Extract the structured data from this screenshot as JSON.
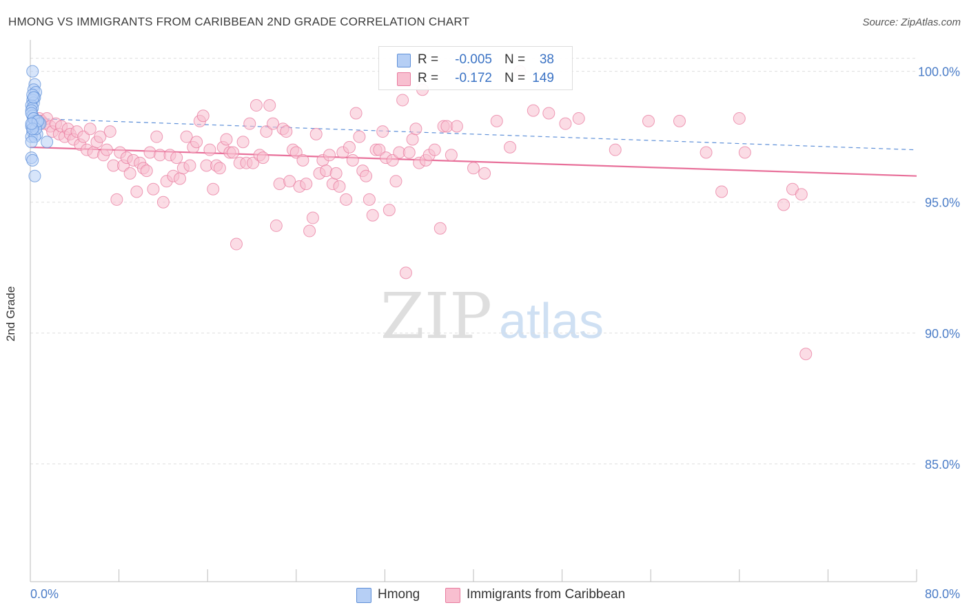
{
  "header": {
    "title": "HMONG VS IMMIGRANTS FROM CARIBBEAN 2ND GRADE CORRELATION CHART",
    "source": "Source: ZipAtlas.com"
  },
  "watermark": {
    "zip": "ZIP",
    "atlas": "atlas"
  },
  "legend": {
    "rows": [
      {
        "r_label": "R =",
        "r_value": "-0.005",
        "n_label": "N =",
        "n_value": "38"
      },
      {
        "r_label": "R =",
        "r_value": "-0.172",
        "n_label": "N =",
        "n_value": "149"
      }
    ]
  },
  "colors": {
    "hmong_fill": "#b6cff5",
    "hmong_stroke": "#5d8fd8",
    "hmong_line": "#5d8fd8",
    "carib_fill": "#f8bfd0",
    "carib_stroke": "#e87a9e",
    "carib_line": "#e8709a",
    "axis_text": "#4a7cc7",
    "grid": "#dddddd"
  },
  "chart_data": {
    "type": "scatter",
    "title": "HMONG VS IMMIGRANTS FROM CARIBBEAN 2ND GRADE CORRELATION CHART",
    "xlabel": "",
    "ylabel": "2nd Grade",
    "xlim": [
      0,
      80
    ],
    "ylim": [
      80.5,
      101.2
    ],
    "x_tick_labels": [
      "0.0%",
      "80.0%"
    ],
    "y_ticks": [
      85,
      90,
      95,
      100
    ],
    "y_tick_labels": [
      "85.0%",
      "90.0%",
      "95.0%",
      "100.0%"
    ],
    "grid": true,
    "legend_position": "bottom",
    "series": [
      {
        "name": "Hmong",
        "trend": {
          "x": [
            0,
            80
          ],
          "y": [
            98.2,
            97.0
          ]
        },
        "points": [
          [
            0.2,
            100.0
          ],
          [
            0.4,
            99.5
          ],
          [
            0.3,
            99.3
          ],
          [
            0.5,
            99.2
          ],
          [
            0.4,
            99.0
          ],
          [
            0.2,
            98.9
          ],
          [
            0.3,
            98.8
          ],
          [
            0.1,
            98.7
          ],
          [
            0.2,
            98.6
          ],
          [
            0.1,
            98.5
          ],
          [
            0.2,
            98.3
          ],
          [
            0.3,
            98.2
          ],
          [
            0.4,
            98.1
          ],
          [
            0.6,
            98.0
          ],
          [
            0.8,
            98.0
          ],
          [
            0.5,
            98.1
          ],
          [
            0.1,
            97.9
          ],
          [
            0.3,
            97.8
          ],
          [
            0.2,
            97.7
          ],
          [
            0.6,
            97.6
          ],
          [
            0.1,
            97.5
          ],
          [
            1.5,
            97.3
          ],
          [
            0.1,
            96.7
          ],
          [
            0.2,
            96.6
          ],
          [
            0.4,
            96.0
          ],
          [
            0.2,
            99.1
          ],
          [
            0.1,
            98.4
          ],
          [
            0.2,
            98.0
          ],
          [
            0.4,
            97.5
          ],
          [
            0.6,
            98.1
          ],
          [
            0.3,
            98.2
          ],
          [
            0.1,
            97.3
          ],
          [
            0.9,
            98.0
          ],
          [
            0.5,
            97.8
          ],
          [
            0.7,
            98.1
          ],
          [
            0.3,
            99.0
          ],
          [
            0.2,
            97.8
          ],
          [
            0.1,
            98.0
          ]
        ]
      },
      {
        "name": "Immigrants from Caribbean",
        "trend": {
          "x": [
            0,
            80
          ],
          "y": [
            97.1,
            96.0
          ]
        },
        "points": [
          [
            0.8,
            98.2
          ],
          [
            1.0,
            98.1
          ],
          [
            1.2,
            98.0
          ],
          [
            1.5,
            98.2
          ],
          [
            1.8,
            97.9
          ],
          [
            2.0,
            97.7
          ],
          [
            2.3,
            98.0
          ],
          [
            2.6,
            97.6
          ],
          [
            2.8,
            97.9
          ],
          [
            3.1,
            97.5
          ],
          [
            3.4,
            97.8
          ],
          [
            3.6,
            97.6
          ],
          [
            3.9,
            97.4
          ],
          [
            4.2,
            97.7
          ],
          [
            4.5,
            97.2
          ],
          [
            4.8,
            97.5
          ],
          [
            5.1,
            97.0
          ],
          [
            5.4,
            97.8
          ],
          [
            5.7,
            96.9
          ],
          [
            6.0,
            97.3
          ],
          [
            6.3,
            97.5
          ],
          [
            6.6,
            96.8
          ],
          [
            6.9,
            97.0
          ],
          [
            7.2,
            97.7
          ],
          [
            7.5,
            96.4
          ],
          [
            7.8,
            95.1
          ],
          [
            8.1,
            96.9
          ],
          [
            8.4,
            96.4
          ],
          [
            8.7,
            96.7
          ],
          [
            9.0,
            96.1
          ],
          [
            9.3,
            96.6
          ],
          [
            9.6,
            95.4
          ],
          [
            9.9,
            96.5
          ],
          [
            10.2,
            96.3
          ],
          [
            10.5,
            96.2
          ],
          [
            10.8,
            96.9
          ],
          [
            11.1,
            95.5
          ],
          [
            11.4,
            97.5
          ],
          [
            11.7,
            96.8
          ],
          [
            12.0,
            95.0
          ],
          [
            12.3,
            95.8
          ],
          [
            12.6,
            96.8
          ],
          [
            12.9,
            96.0
          ],
          [
            13.2,
            96.7
          ],
          [
            13.5,
            95.9
          ],
          [
            13.8,
            96.3
          ],
          [
            14.1,
            97.5
          ],
          [
            14.4,
            96.4
          ],
          [
            14.7,
            97.1
          ],
          [
            15.0,
            97.3
          ],
          [
            15.3,
            98.1
          ],
          [
            15.6,
            98.3
          ],
          [
            15.9,
            96.4
          ],
          [
            16.2,
            97.0
          ],
          [
            16.5,
            95.5
          ],
          [
            16.8,
            96.4
          ],
          [
            17.1,
            96.3
          ],
          [
            17.4,
            97.1
          ],
          [
            17.7,
            97.4
          ],
          [
            18.0,
            96.9
          ],
          [
            18.3,
            96.9
          ],
          [
            18.6,
            93.4
          ],
          [
            18.9,
            96.5
          ],
          [
            19.2,
            97.3
          ],
          [
            19.5,
            96.5
          ],
          [
            19.8,
            98.0
          ],
          [
            20.1,
            96.5
          ],
          [
            20.4,
            98.7
          ],
          [
            20.7,
            96.8
          ],
          [
            21.0,
            96.7
          ],
          [
            21.3,
            97.7
          ],
          [
            21.6,
            98.7
          ],
          [
            21.9,
            98.0
          ],
          [
            22.2,
            94.1
          ],
          [
            22.5,
            95.7
          ],
          [
            22.8,
            97.8
          ],
          [
            23.1,
            97.7
          ],
          [
            23.4,
            95.8
          ],
          [
            23.7,
            97.0
          ],
          [
            24.0,
            96.9
          ],
          [
            24.3,
            95.6
          ],
          [
            24.6,
            96.6
          ],
          [
            24.9,
            95.7
          ],
          [
            25.2,
            93.9
          ],
          [
            25.5,
            94.4
          ],
          [
            25.8,
            97.6
          ],
          [
            26.1,
            96.1
          ],
          [
            26.4,
            96.6
          ],
          [
            26.7,
            96.2
          ],
          [
            27.0,
            96.8
          ],
          [
            27.3,
            95.7
          ],
          [
            27.6,
            96.1
          ],
          [
            27.9,
            95.6
          ],
          [
            28.2,
            96.9
          ],
          [
            28.5,
            95.1
          ],
          [
            28.8,
            97.1
          ],
          [
            29.1,
            96.6
          ],
          [
            29.4,
            98.4
          ],
          [
            29.7,
            97.5
          ],
          [
            30.0,
            96.2
          ],
          [
            30.3,
            96.0
          ],
          [
            30.6,
            95.1
          ],
          [
            30.9,
            94.5
          ],
          [
            31.2,
            97.0
          ],
          [
            31.5,
            97.0
          ],
          [
            31.8,
            97.7
          ],
          [
            32.1,
            96.7
          ],
          [
            32.4,
            94.7
          ],
          [
            32.7,
            96.6
          ],
          [
            33.0,
            95.8
          ],
          [
            33.3,
            96.9
          ],
          [
            33.6,
            98.9
          ],
          [
            33.9,
            92.3
          ],
          [
            34.2,
            96.9
          ],
          [
            34.5,
            97.4
          ],
          [
            34.8,
            97.8
          ],
          [
            35.1,
            96.5
          ],
          [
            35.4,
            99.3
          ],
          [
            35.7,
            96.6
          ],
          [
            36.0,
            96.8
          ],
          [
            36.5,
            97.0
          ],
          [
            37.0,
            94.0
          ],
          [
            37.3,
            97.9
          ],
          [
            37.6,
            97.9
          ],
          [
            38.0,
            96.8
          ],
          [
            38.5,
            97.9
          ],
          [
            39.3,
            100.0
          ],
          [
            40.0,
            96.3
          ],
          [
            41.0,
            96.1
          ],
          [
            42.1,
            98.1
          ],
          [
            43.3,
            97.1
          ],
          [
            44.2,
            100.0
          ],
          [
            45.4,
            98.5
          ],
          [
            46.8,
            98.4
          ],
          [
            48.3,
            98.0
          ],
          [
            49.5,
            98.2
          ],
          [
            52.8,
            97.0
          ],
          [
            55.8,
            98.1
          ],
          [
            58.6,
            98.1
          ],
          [
            61.0,
            96.9
          ],
          [
            62.4,
            95.4
          ],
          [
            64.5,
            96.9
          ],
          [
            64.0,
            98.2
          ],
          [
            68.0,
            94.9
          ],
          [
            68.8,
            95.5
          ],
          [
            69.6,
            95.3
          ],
          [
            70.0,
            89.2
          ]
        ]
      }
    ]
  }
}
